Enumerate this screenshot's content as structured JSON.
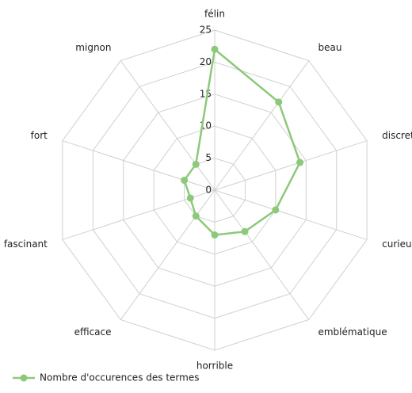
{
  "chart_data": {
    "type": "radar",
    "categories": [
      "félin",
      "beau",
      "discret",
      "curieux",
      "emblématique",
      "horrible",
      "efficace",
      "fascinant",
      "fort",
      "mignon"
    ],
    "series": [
      {
        "name": "Nombre d'occurences des termes",
        "color": "#8cc97a",
        "values": [
          22,
          17,
          14,
          10,
          8,
          7,
          5,
          4,
          5,
          5
        ]
      }
    ],
    "ylim": [
      0,
      25
    ],
    "yticks": [
      0,
      5,
      10,
      15,
      20,
      25
    ],
    "grid": true,
    "legend": "bottom-left"
  }
}
